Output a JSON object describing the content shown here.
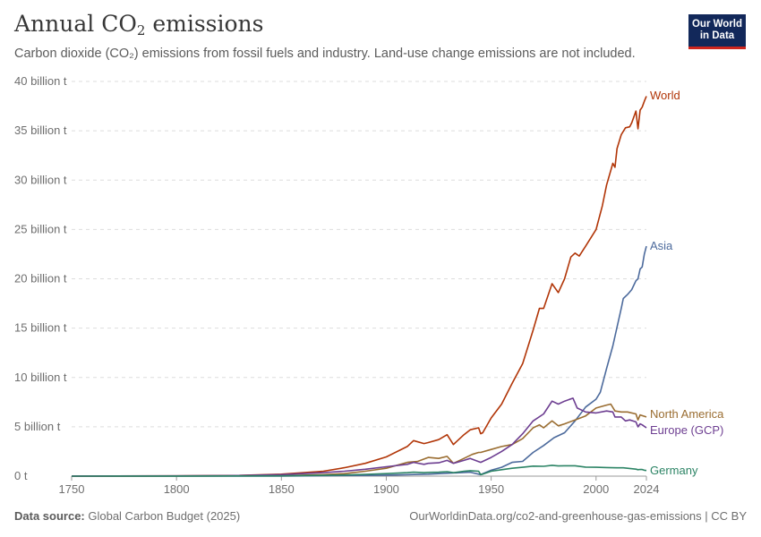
{
  "header": {
    "title_main": "Annual CO",
    "title_sub": "2",
    "title_end": " emissions",
    "subtitle": "Carbon dioxide (CO₂) emissions from fossil fuels and industry. Land-use change emissions are not included.",
    "logo_line1": "Our World",
    "logo_line2": "in Data"
  },
  "footer": {
    "source_label": "Data source:",
    "source_value": " Global Carbon Budget (2025)",
    "url": "OurWorldinData.org/co2-and-greenhouse-gas-emissions | CC BY"
  },
  "colors": {
    "World": "#b13507",
    "Asia": "#4c6a9c",
    "North America": "#9a6d31",
    "Europe (GCP)": "#6d3e91",
    "Germany": "#2c8465"
  },
  "chart_data": {
    "type": "line",
    "title": "Annual CO₂ emissions",
    "subtitle": "Carbon dioxide (CO₂) emissions from fossil fuels and industry. Land-use change emissions are not included.",
    "xlabel": "",
    "ylabel": "",
    "xlim": [
      1750,
      2024
    ],
    "ylim": [
      0,
      40
    ],
    "x_ticks": [
      1750,
      1800,
      1850,
      1900,
      1950,
      2000,
      2024
    ],
    "y_ticks": [
      {
        "value": 0,
        "label": "0 t"
      },
      {
        "value": 5,
        "label": "5 billion t"
      },
      {
        "value": 10,
        "label": "10 billion t"
      },
      {
        "value": 15,
        "label": "15 billion t"
      },
      {
        "value": 20,
        "label": "20 billion t"
      },
      {
        "value": 25,
        "label": "25 billion t"
      },
      {
        "value": 30,
        "label": "30 billion t"
      },
      {
        "value": 35,
        "label": "35 billion t"
      },
      {
        "value": 40,
        "label": "40 billion t"
      }
    ],
    "grid": true,
    "legend": "inline-right",
    "series": [
      {
        "name": "World",
        "points": [
          [
            1750,
            0.01
          ],
          [
            1800,
            0.03
          ],
          [
            1830,
            0.07
          ],
          [
            1850,
            0.2
          ],
          [
            1870,
            0.5
          ],
          [
            1880,
            0.85
          ],
          [
            1890,
            1.3
          ],
          [
            1900,
            1.95
          ],
          [
            1910,
            3.0
          ],
          [
            1913,
            3.6
          ],
          [
            1918,
            3.3
          ],
          [
            1920,
            3.4
          ],
          [
            1925,
            3.7
          ],
          [
            1929,
            4.2
          ],
          [
            1932,
            3.2
          ],
          [
            1937,
            4.2
          ],
          [
            1940,
            4.7
          ],
          [
            1944,
            4.9
          ],
          [
            1945,
            4.3
          ],
          [
            1946,
            4.4
          ],
          [
            1950,
            5.9
          ],
          [
            1955,
            7.3
          ],
          [
            1960,
            9.4
          ],
          [
            1965,
            11.4
          ],
          [
            1970,
            14.8
          ],
          [
            1973,
            17.0
          ],
          [
            1975,
            17.0
          ],
          [
            1979,
            19.5
          ],
          [
            1982,
            18.6
          ],
          [
            1985,
            20.0
          ],
          [
            1988,
            22.2
          ],
          [
            1990,
            22.6
          ],
          [
            1992,
            22.3
          ],
          [
            1995,
            23.3
          ],
          [
            2000,
            25.0
          ],
          [
            2003,
            27.4
          ],
          [
            2005,
            29.5
          ],
          [
            2008,
            31.7
          ],
          [
            2009,
            31.3
          ],
          [
            2010,
            33.2
          ],
          [
            2012,
            34.6
          ],
          [
            2014,
            35.3
          ],
          [
            2016,
            35.4
          ],
          [
            2017,
            35.8
          ],
          [
            2019,
            37.0
          ],
          [
            2020,
            35.2
          ],
          [
            2021,
            37.1
          ],
          [
            2022,
            37.4
          ],
          [
            2023,
            38.0
          ],
          [
            2024,
            38.5
          ]
        ]
      },
      {
        "name": "Asia",
        "points": [
          [
            1750,
            0.0
          ],
          [
            1850,
            0.01
          ],
          [
            1900,
            0.1
          ],
          [
            1920,
            0.2
          ],
          [
            1940,
            0.4
          ],
          [
            1945,
            0.15
          ],
          [
            1950,
            0.6
          ],
          [
            1955,
            0.9
          ],
          [
            1960,
            1.4
          ],
          [
            1965,
            1.5
          ],
          [
            1970,
            2.4
          ],
          [
            1975,
            3.1
          ],
          [
            1980,
            3.9
          ],
          [
            1985,
            4.4
          ],
          [
            1990,
            5.6
          ],
          [
            1995,
            7.0
          ],
          [
            2000,
            7.8
          ],
          [
            2002,
            8.5
          ],
          [
            2005,
            10.9
          ],
          [
            2008,
            13.2
          ],
          [
            2010,
            15.1
          ],
          [
            2012,
            17.0
          ],
          [
            2013,
            18.0
          ],
          [
            2015,
            18.4
          ],
          [
            2017,
            18.9
          ],
          [
            2019,
            19.8
          ],
          [
            2020,
            20.0
          ],
          [
            2021,
            21.0
          ],
          [
            2022,
            21.2
          ],
          [
            2023,
            22.5
          ],
          [
            2024,
            23.3
          ]
        ]
      },
      {
        "name": "North America",
        "points": [
          [
            1750,
            0.0
          ],
          [
            1850,
            0.04
          ],
          [
            1870,
            0.15
          ],
          [
            1880,
            0.25
          ],
          [
            1890,
            0.5
          ],
          [
            1900,
            0.8
          ],
          [
            1910,
            1.4
          ],
          [
            1915,
            1.5
          ],
          [
            1920,
            1.9
          ],
          [
            1925,
            1.8
          ],
          [
            1929,
            2.0
          ],
          [
            1932,
            1.3
          ],
          [
            1937,
            1.8
          ],
          [
            1941,
            2.2
          ],
          [
            1944,
            2.4
          ],
          [
            1945,
            2.4
          ],
          [
            1950,
            2.7
          ],
          [
            1955,
            3.0
          ],
          [
            1960,
            3.2
          ],
          [
            1965,
            3.8
          ],
          [
            1970,
            4.9
          ],
          [
            1973,
            5.2
          ],
          [
            1975,
            4.9
          ],
          [
            1979,
            5.6
          ],
          [
            1982,
            5.1
          ],
          [
            1985,
            5.3
          ],
          [
            1990,
            5.7
          ],
          [
            1995,
            6.1
          ],
          [
            2000,
            6.9
          ],
          [
            2005,
            7.2
          ],
          [
            2007,
            7.3
          ],
          [
            2009,
            6.6
          ],
          [
            2012,
            6.5
          ],
          [
            2015,
            6.5
          ],
          [
            2019,
            6.3
          ],
          [
            2020,
            5.7
          ],
          [
            2021,
            6.2
          ],
          [
            2024,
            6.0
          ]
        ]
      },
      {
        "name": "Europe (GCP)",
        "points": [
          [
            1750,
            0.01
          ],
          [
            1800,
            0.03
          ],
          [
            1830,
            0.06
          ],
          [
            1850,
            0.15
          ],
          [
            1870,
            0.35
          ],
          [
            1880,
            0.5
          ],
          [
            1890,
            0.7
          ],
          [
            1900,
            0.95
          ],
          [
            1910,
            1.2
          ],
          [
            1913,
            1.4
          ],
          [
            1918,
            1.2
          ],
          [
            1920,
            1.3
          ],
          [
            1925,
            1.35
          ],
          [
            1929,
            1.6
          ],
          [
            1932,
            1.3
          ],
          [
            1937,
            1.6
          ],
          [
            1940,
            1.8
          ],
          [
            1945,
            1.4
          ],
          [
            1950,
            1.9
          ],
          [
            1955,
            2.5
          ],
          [
            1960,
            3.2
          ],
          [
            1965,
            4.3
          ],
          [
            1970,
            5.6
          ],
          [
            1975,
            6.3
          ],
          [
            1979,
            7.6
          ],
          [
            1982,
            7.3
          ],
          [
            1985,
            7.6
          ],
          [
            1989,
            7.9
          ],
          [
            1991,
            6.9
          ],
          [
            1995,
            6.5
          ],
          [
            2000,
            6.4
          ],
          [
            2005,
            6.6
          ],
          [
            2008,
            6.5
          ],
          [
            2009,
            6.0
          ],
          [
            2012,
            6.0
          ],
          [
            2014,
            5.6
          ],
          [
            2016,
            5.7
          ],
          [
            2019,
            5.5
          ],
          [
            2020,
            5.0
          ],
          [
            2021,
            5.3
          ],
          [
            2022,
            5.2
          ],
          [
            2024,
            4.9
          ]
        ]
      },
      {
        "name": "Germany",
        "points": [
          [
            1750,
            0.0
          ],
          [
            1800,
            0.01
          ],
          [
            1850,
            0.03
          ],
          [
            1870,
            0.08
          ],
          [
            1880,
            0.12
          ],
          [
            1890,
            0.18
          ],
          [
            1900,
            0.25
          ],
          [
            1910,
            0.35
          ],
          [
            1913,
            0.4
          ],
          [
            1918,
            0.35
          ],
          [
            1920,
            0.38
          ],
          [
            1925,
            0.4
          ],
          [
            1929,
            0.45
          ],
          [
            1932,
            0.35
          ],
          [
            1937,
            0.5
          ],
          [
            1940,
            0.55
          ],
          [
            1944,
            0.5
          ],
          [
            1945,
            0.15
          ],
          [
            1946,
            0.2
          ],
          [
            1950,
            0.5
          ],
          [
            1955,
            0.65
          ],
          [
            1960,
            0.8
          ],
          [
            1965,
            0.9
          ],
          [
            1970,
            1.02
          ],
          [
            1975,
            1.0
          ],
          [
            1979,
            1.1
          ],
          [
            1982,
            1.03
          ],
          [
            1985,
            1.05
          ],
          [
            1990,
            1.05
          ],
          [
            1995,
            0.92
          ],
          [
            2000,
            0.9
          ],
          [
            2005,
            0.87
          ],
          [
            2010,
            0.84
          ],
          [
            2013,
            0.84
          ],
          [
            2015,
            0.8
          ],
          [
            2019,
            0.71
          ],
          [
            2020,
            0.65
          ],
          [
            2021,
            0.68
          ],
          [
            2022,
            0.67
          ],
          [
            2023,
            0.6
          ],
          [
            2024,
            0.57
          ]
        ]
      }
    ]
  }
}
